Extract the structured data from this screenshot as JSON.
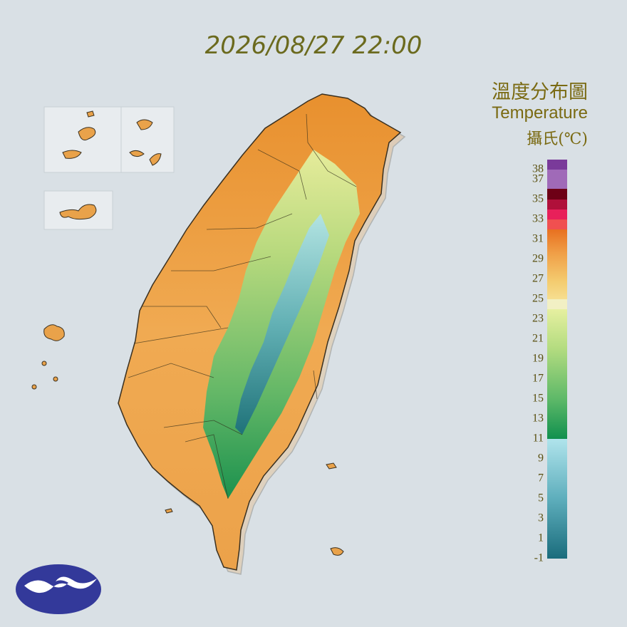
{
  "header": {
    "timestamp": "2026/08/27 22:00"
  },
  "legend": {
    "title": "溫度分布圖",
    "subtitle": "Temperature",
    "unit": "攝氏(℃)",
    "ticks": [
      38,
      37,
      35,
      33,
      31,
      29,
      27,
      25,
      23,
      21,
      19,
      17,
      15,
      13,
      11,
      9,
      7,
      5,
      3,
      1,
      -1
    ]
  }
}
